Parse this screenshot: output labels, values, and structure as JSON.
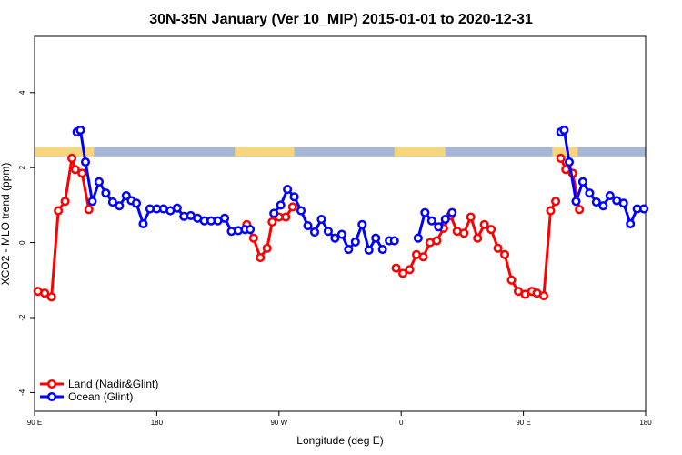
{
  "chart_data": {
    "type": "line",
    "title": "30N-35N January (Ver 10_MIP)   2015-01-01 to 2020-12-31",
    "xlabel": "Longitude (deg E)",
    "ylabel": "XCO2 - MLO trend (ppm)",
    "xlim": [
      90,
      450
    ],
    "ylim": [
      -4.5,
      5.5
    ],
    "x_ticks": [
      {
        "value": 90,
        "label": "90 E"
      },
      {
        "value": 162,
        "label": "180"
      },
      {
        "value": 234,
        "label": "90 W"
      },
      {
        "value": 306,
        "label": "0"
      },
      {
        "value": 378,
        "label": "90 E"
      },
      {
        "value": 450,
        "label": "180"
      }
    ],
    "y_ticks": [
      {
        "value": -4,
        "label": "-4"
      },
      {
        "value": -2,
        "label": "-2"
      },
      {
        "value": 0,
        "label": "0"
      },
      {
        "value": 2,
        "label": "2"
      },
      {
        "value": 4,
        "label": "4"
      }
    ],
    "land_ocean_band": {
      "y_range": [
        2.3,
        2.55
      ],
      "land_color": "#f5d57e",
      "ocean_color": "#a5b7d5",
      "land_segments": [
        [
          90,
          125
        ],
        [
          208,
          243
        ],
        [
          302,
          332
        ],
        [
          395,
          410
        ]
      ]
    },
    "series": [
      {
        "name": "Land (Nadir&Glint)",
        "color": "#ff0000",
        "segments": [
          {
            "x": [
              92,
              96,
              100,
              104,
              108,
              112,
              114,
              118,
              122
            ],
            "y": [
              -1.3,
              -1.35,
              -1.45,
              0.85,
              1.1,
              2.25,
              1.95,
              1.85,
              0.88
            ]
          },
          {
            "x": [
              215,
              219,
              223,
              227,
              230,
              234
            ],
            "y": [
              0.48,
              0.12,
              -0.4,
              -0.15,
              0.55,
              0.68
            ]
          },
          {
            "x": [
              238,
              242
            ],
            "y": [
              0.68,
              0.95
            ]
          },
          {
            "x": [
              303,
              307,
              311,
              315,
              319,
              323,
              327,
              331,
              335,
              339,
              343,
              347,
              351,
              355,
              359,
              363,
              367,
              371,
              375,
              379,
              383,
              386,
              390,
              394,
              397
            ],
            "y": [
              -0.68,
              -0.82,
              -0.72,
              -0.32,
              -0.38,
              0.0,
              0.05,
              0.38,
              0.72,
              0.3,
              0.25,
              0.68,
              0.12,
              0.48,
              0.35,
              -0.15,
              -0.32,
              -1.0,
              -1.3,
              -1.38,
              -1.3,
              -1.35,
              -1.42,
              0.85,
              1.1
            ]
          },
          {
            "x": [
              400,
              403,
              407,
              411
            ],
            "y": [
              2.25,
              1.95,
              1.85,
              0.88
            ]
          }
        ]
      },
      {
        "name": "Ocean (Glint)",
        "color": "#0000ff",
        "segments": [
          {
            "x": [
              115,
              117,
              120,
              124,
              128,
              132,
              136,
              140,
              144,
              147,
              150,
              154,
              158,
              162,
              166,
              170,
              174,
              178,
              182,
              186,
              190,
              194,
              198,
              202,
              206,
              210,
              214,
              217
            ],
            "y": [
              2.95,
              3.0,
              2.15,
              1.1,
              1.62,
              1.32,
              1.08,
              0.98,
              1.25,
              1.12,
              1.05,
              0.5,
              0.9,
              0.9,
              0.9,
              0.85,
              0.92,
              0.7,
              0.72,
              0.65,
              0.58,
              0.58,
              0.58,
              0.65,
              0.3,
              0.32,
              0.35,
              0.35
            ]
          },
          {
            "x": [
              231,
              235,
              239,
              243,
              247,
              251,
              255,
              259,
              263,
              267,
              271,
              275,
              279,
              283,
              287,
              291,
              295
            ],
            "y": [
              0.78,
              1.0,
              1.42,
              1.22,
              0.85,
              0.45,
              0.28,
              0.62,
              0.3,
              0.12,
              0.22,
              -0.18,
              0.02,
              0.48,
              -0.2,
              0.12,
              -0.18
            ]
          },
          {
            "x": [
              299,
              302
            ],
            "y": [
              0.05,
              0.05
            ]
          },
          {
            "x": [
              316,
              320,
              324,
              328,
              332,
              336
            ],
            "y": [
              0.12,
              0.8,
              0.58,
              0.42,
              0.62,
              0.8
            ]
          },
          {
            "x": [
              400,
              402,
              405,
              409,
              413,
              417,
              421,
              425,
              429,
              433,
              437,
              441,
              445,
              449
            ],
            "y": [
              2.95,
              3.0,
              2.15,
              1.1,
              1.62,
              1.32,
              1.08,
              0.98,
              1.25,
              1.12,
              1.05,
              0.5,
              0.9,
              0.9
            ]
          }
        ]
      }
    ],
    "legend_position": "bottom-left",
    "grid": false
  }
}
